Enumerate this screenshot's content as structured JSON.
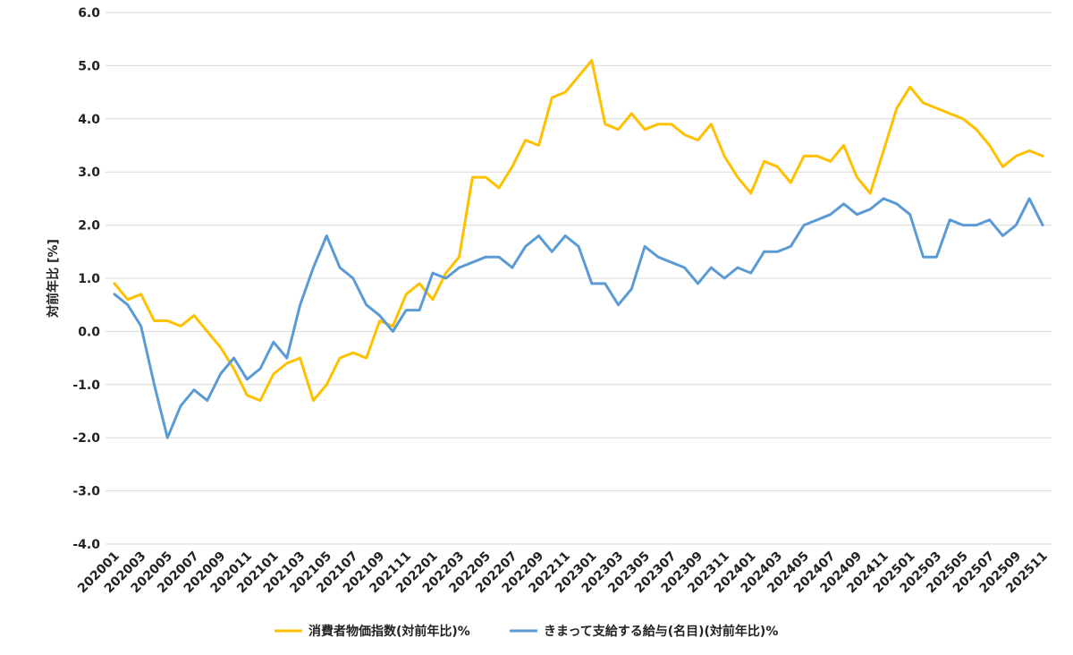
{
  "chart_data": {
    "type": "line",
    "ylabel": "対前年比 [%]",
    "ylim": [
      -4.0,
      6.0
    ],
    "yticks": [
      "6.0",
      "5.0",
      "4.0",
      "3.0",
      "2.0",
      "1.0",
      "0.0",
      "-1.0",
      "-2.0",
      "-3.0",
      "-4.0"
    ],
    "x": [
      "202001",
      "202002",
      "202003",
      "202004",
      "202005",
      "202006",
      "202007",
      "202008",
      "202009",
      "202010",
      "202011",
      "202012",
      "202101",
      "202102",
      "202103",
      "202104",
      "202105",
      "202106",
      "202107",
      "202108",
      "202109",
      "202110",
      "202111",
      "202112",
      "202201",
      "202202",
      "202203",
      "202204",
      "202205",
      "202206",
      "202207",
      "202208",
      "202209",
      "202210",
      "202211",
      "202212",
      "202301",
      "202302",
      "202303",
      "202304",
      "202305",
      "202306",
      "202307",
      "202308",
      "202309",
      "202310",
      "202311",
      "202312",
      "202401",
      "202402",
      "202403",
      "202404",
      "202405",
      "202406",
      "202407",
      "202408",
      "202409",
      "202410",
      "202411",
      "202412",
      "202501",
      "202502",
      "202503",
      "202504",
      "202505",
      "202506",
      "202507",
      "202508",
      "202509",
      "202510",
      "202511"
    ],
    "xtick_labels": [
      "202001",
      "202003",
      "202005",
      "202007",
      "202009",
      "202011",
      "202101",
      "202103",
      "202105",
      "202107",
      "202109",
      "202111",
      "202201",
      "202203",
      "202205",
      "202207",
      "202209",
      "202211",
      "202301",
      "202303",
      "202305",
      "202307",
      "202309",
      "202311",
      "202401",
      "202403",
      "202405",
      "202407",
      "202409",
      "202411",
      "202501",
      "202503",
      "202505",
      "202507",
      "202509",
      "202511"
    ],
    "grid": true,
    "legend_position": "bottom",
    "series": [
      {
        "name": "消費者物価指数(対前年比)%",
        "color": "#FFC000",
        "values": [
          0.9,
          0.6,
          0.7,
          0.2,
          0.2,
          0.1,
          0.3,
          0.0,
          -0.3,
          -0.7,
          -1.2,
          -1.3,
          -0.8,
          -0.6,
          -0.5,
          -1.3,
          -1.0,
          -0.5,
          -0.4,
          -0.5,
          0.2,
          0.1,
          0.7,
          0.9,
          0.6,
          1.1,
          1.4,
          2.9,
          2.9,
          2.7,
          3.1,
          3.6,
          3.5,
          4.4,
          4.5,
          4.8,
          5.1,
          3.9,
          3.8,
          4.1,
          3.8,
          3.9,
          3.9,
          3.7,
          3.6,
          3.9,
          3.3,
          2.9,
          2.6,
          3.2,
          3.1,
          2.8,
          3.3,
          3.3,
          3.2,
          3.5,
          2.9,
          2.6,
          3.4,
          4.2,
          4.6,
          4.3,
          4.2,
          4.1,
          4.0,
          3.8,
          3.5,
          3.1,
          3.3,
          3.4,
          3.3
        ]
      },
      {
        "name": "きまって支給する給与(名目)(対前年比)%",
        "color": "#5B9BD5",
        "values": [
          0.7,
          0.5,
          0.1,
          -1.0,
          -2.0,
          -1.4,
          -1.1,
          -1.3,
          -0.8,
          -0.5,
          -0.9,
          -0.7,
          -0.2,
          -0.5,
          0.5,
          1.2,
          1.8,
          1.2,
          1.0,
          0.5,
          0.3,
          0.0,
          0.4,
          0.4,
          1.1,
          1.0,
          1.2,
          1.3,
          1.4,
          1.4,
          1.2,
          1.6,
          1.8,
          1.5,
          1.8,
          1.6,
          0.9,
          0.9,
          0.5,
          0.8,
          1.6,
          1.4,
          1.3,
          1.2,
          0.9,
          1.2,
          1.0,
          1.2,
          1.1,
          1.5,
          1.5,
          1.6,
          2.0,
          2.1,
          2.2,
          2.4,
          2.2,
          2.3,
          2.5,
          2.4,
          2.2,
          1.4,
          1.4,
          2.1,
          2.0,
          2.0,
          2.1,
          1.8,
          2.0,
          2.5,
          2.0
        ]
      }
    ]
  }
}
